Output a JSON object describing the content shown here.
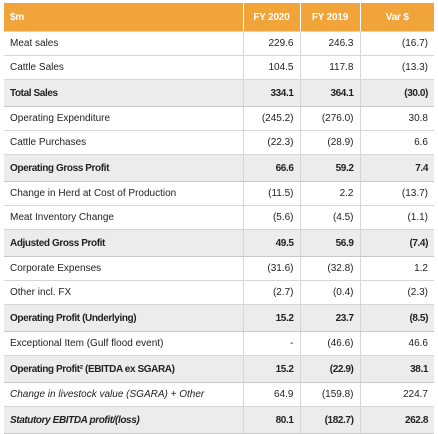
{
  "table": {
    "header": [
      "$m",
      "FY 2020",
      "FY 2019",
      "Var $"
    ],
    "rows": [
      [
        "Meat sales",
        "229.6",
        "246.3",
        "(16.7)"
      ],
      [
        "Cattle Sales",
        "104.5",
        "117.8",
        "(13.3)"
      ],
      [
        "Total Sales",
        "334.1",
        "364.1",
        "(30.0)"
      ],
      [
        "Operating Expenditure",
        "(245.2)",
        "(276.0)",
        "30.8"
      ],
      [
        "Cattle Purchases",
        "(22.3)",
        "(28.9)",
        "6.6"
      ],
      [
        "Operating Gross Profit",
        "66.6",
        "59.2",
        "7.4"
      ],
      [
        "Change in Herd at Cost of Production",
        "(11.5)",
        "2.2",
        "(13.7)"
      ],
      [
        "Meat Inventory Change",
        "(5.6)",
        "(4.5)",
        "(1.1)"
      ],
      [
        "Adjusted Gross Profit",
        "49.5",
        "56.9",
        "(7.4)"
      ],
      [
        "Corporate Expenses",
        "(31.6)",
        "(32.8)",
        "1.2"
      ],
      [
        "Other incl. FX",
        "(2.7)",
        "(0.4)",
        "(2.3)"
      ],
      [
        "Operating Profit (Underlying)",
        "15.2",
        "23.7",
        "(8.5)"
      ],
      [
        "Exceptional Item (Gulf flood event)",
        "-",
        "(46.6)",
        "46.6"
      ],
      [
        "Operating Profit² (EBITDA ex SGARA)",
        "15.2",
        "(22.9)",
        "38.1"
      ],
      [
        "Change in livestock value (SGARA) + Other",
        "64.9",
        "(159.8)",
        "224.7"
      ],
      [
        "Statutory EBITDA profit/(loss)",
        "80.1",
        "(182.7)",
        "262.8"
      ]
    ]
  }
}
